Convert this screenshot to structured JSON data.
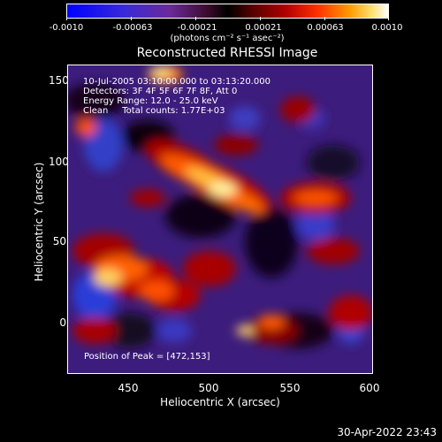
{
  "colorbar": {
    "labels": [
      "-0.0010",
      "-0.00063",
      "-0.00021",
      "0.00021",
      "0.00063",
      "0.0010"
    ],
    "units": "(photons cm⁻² s⁻¹ asec⁻²)"
  },
  "title": "Reconstructed RHESSI Image",
  "info": {
    "line1": "10-Jul-2005 03:10:00.000 to 03:13:20.000",
    "line2": "Detectors: 3F 4F 5F 6F 7F 8F, Att 0",
    "line3": "Energy Range: 12.0 - 25.0 keV",
    "line4": "Clean     Total counts: 1.77E+03"
  },
  "peak": "Position of Peak = [472,153]",
  "axes": {
    "xlabel": "Heliocentric X (arcsec)",
    "ylabel": "Heliocentric Y (arcsec)",
    "xticks": [
      "450",
      "500",
      "550",
      "600"
    ],
    "yticks": [
      "150",
      "100",
      "50",
      "0"
    ]
  },
  "timestamp": "30-Apr-2022 23:43"
}
